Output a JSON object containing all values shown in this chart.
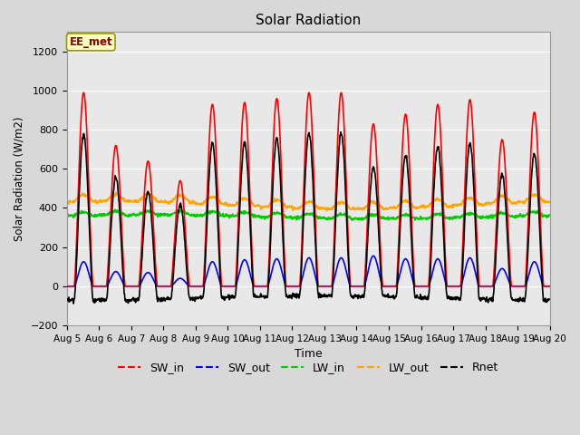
{
  "title": "Solar Radiation",
  "xlabel": "Time",
  "ylabel": "Solar Radiation (W/m2)",
  "ylim": [
    -200,
    1300
  ],
  "yticks": [
    -200,
    0,
    200,
    400,
    600,
    800,
    1000,
    1200
  ],
  "x_tick_labels": [
    "Aug 5",
    "Aug 6",
    "Aug 7",
    "Aug 8",
    "Aug 9",
    "Aug 10",
    "Aug 11",
    "Aug 12",
    "Aug 13",
    "Aug 14",
    "Aug 15",
    "Aug 16",
    "Aug 17",
    "Aug 18",
    "Aug 19",
    "Aug 20"
  ],
  "fig_bg_color": "#d8d8d8",
  "plot_bg_color": "#e8e8e8",
  "grid_color": "#ffffff",
  "annotation_text": "EE_met",
  "annotation_box_facecolor": "#ffffc0",
  "annotation_box_edgecolor": "#999900",
  "line_colors": {
    "SW_in": "#ff0000",
    "SW_out": "#0000ff",
    "LW_in": "#00cc00",
    "LW_out": "#ffa500",
    "Rnet": "#000000"
  },
  "n_days": 15,
  "dt_hours": 0.25,
  "day_peaks_SW": [
    990,
    720,
    640,
    540,
    930,
    940,
    960,
    990,
    990,
    830,
    880,
    930,
    955,
    750,
    890
  ],
  "day_peaks_SW_out": [
    125,
    75,
    70,
    40,
    125,
    135,
    140,
    145,
    145,
    155,
    140,
    140,
    145,
    90,
    125
  ],
  "LW_in_base": 355,
  "LW_out_base": 415,
  "night_rnet": -80
}
